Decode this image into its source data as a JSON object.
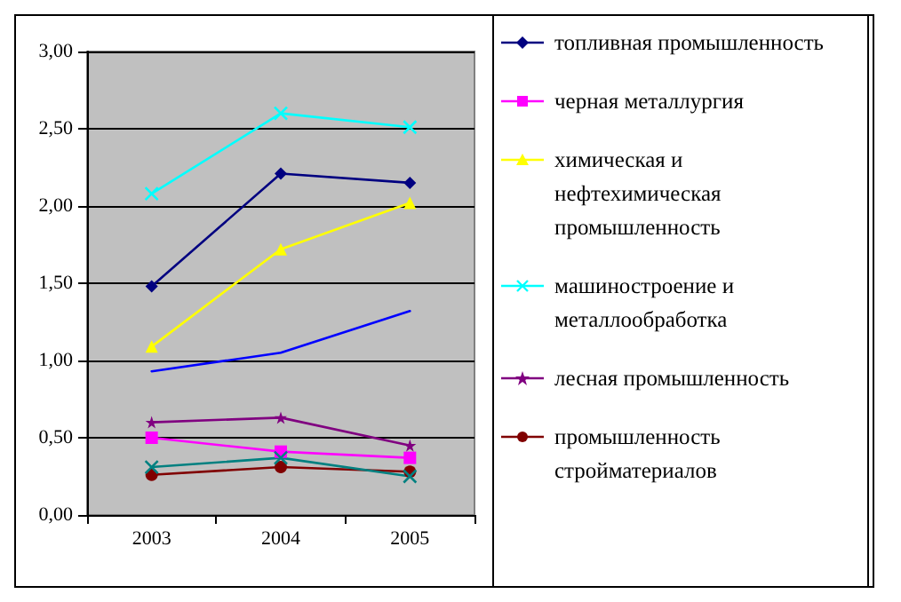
{
  "chart_data": {
    "type": "line",
    "categories": [
      "2003",
      "2004",
      "2005"
    ],
    "series": [
      {
        "name": "топливная промышленность",
        "color": "#000080",
        "marker": "diamond",
        "values": [
          1.48,
          2.21,
          2.15
        ]
      },
      {
        "name": "черная металлургия",
        "color": "#ff00ff",
        "marker": "square",
        "values": [
          0.5,
          0.41,
          0.37
        ]
      },
      {
        "name": "химическая и нефтехимическая промышленность",
        "color": "#ffff00",
        "marker": "triangle",
        "values": [
          1.09,
          1.72,
          2.02
        ]
      },
      {
        "name": "машиностроение и металлообработка",
        "color": "#00ffff",
        "marker": "cross",
        "values": [
          2.08,
          2.6,
          2.51
        ]
      },
      {
        "name": "лесная промышленность",
        "color": "#800080",
        "marker": "star",
        "values": [
          0.6,
          0.63,
          0.45
        ]
      },
      {
        "name": "промышленность стройматериалов",
        "color": "#800000",
        "marker": "circle",
        "values": [
          0.26,
          0.31,
          0.28
        ]
      },
      {
        "color": "#0000ff",
        "marker": "none",
        "values": [
          0.93,
          1.05,
          1.32
        ]
      },
      {
        "color": "#008080",
        "marker": "cross",
        "values": [
          0.31,
          0.37,
          0.25
        ]
      }
    ],
    "ylim": [
      0,
      3
    ],
    "yticks": [
      {
        "value": 0,
        "label": "0,00"
      },
      {
        "value": 0.5,
        "label": "0,50"
      },
      {
        "value": 1,
        "label": "1,00"
      },
      {
        "value": 1.5,
        "label": "1,50"
      },
      {
        "value": 2,
        "label": "2,00"
      },
      {
        "value": 2.5,
        "label": "2,50"
      },
      {
        "value": 3,
        "label": "3,00"
      }
    ],
    "grid": "y",
    "legend": "right",
    "line_style": "solid"
  }
}
